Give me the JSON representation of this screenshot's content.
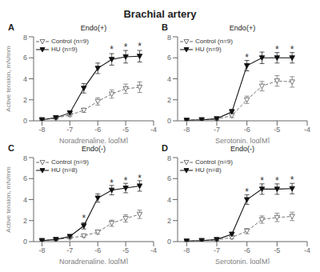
{
  "title": "Brachial artery",
  "chart_data": [
    {
      "type": "line",
      "label": "A",
      "subtitle": "Endo(+)",
      "xlabel": "Noradrenaline, log[M]",
      "ylabel": "Active tension, mN/mm",
      "x": [
        -8,
        -7.5,
        -7,
        -6.5,
        -6,
        -5.5,
        -5,
        -4.5
      ],
      "series": [
        {
          "name": "Control (n=9)",
          "color": "#666666",
          "marker": "triangle-down-open",
          "line_style": "dashed",
          "values": [
            0.1,
            0.25,
            0.55,
            1.0,
            1.85,
            2.55,
            3.05,
            3.2
          ],
          "errors": [
            0.05,
            0.1,
            0.15,
            0.2,
            0.35,
            0.4,
            0.45,
            0.5
          ]
        },
        {
          "name": "HU (n=9)",
          "color": "#111111",
          "marker": "triangle-down",
          "line_style": "solid",
          "values": [
            0.1,
            0.3,
            0.75,
            3.1,
            5.0,
            5.85,
            6.1,
            6.15
          ],
          "errors": [
            0.05,
            0.1,
            0.2,
            0.45,
            0.5,
            0.55,
            0.6,
            0.55
          ]
        }
      ],
      "annotations": [
        {
          "text": "*",
          "x": -5.5,
          "y": 6.8
        },
        {
          "text": "*",
          "x": -5,
          "y": 7.0
        },
        {
          "text": "*",
          "x": -4.5,
          "y": 7.1
        }
      ],
      "xlim": [
        -8.3,
        -4.0
      ],
      "xticks": [
        -8,
        -7,
        -6,
        -5,
        -4
      ],
      "ylim": [
        0,
        8
      ],
      "yticks": [
        0,
        2,
        4,
        6,
        8
      ],
      "legend": "upper left",
      "grid": false
    },
    {
      "type": "line",
      "label": "B",
      "subtitle": "Endo(+)",
      "xlabel": "Serotonin, log[M]",
      "x": [
        -8,
        -7.5,
        -7,
        -6.5,
        -6,
        -5.5,
        -5,
        -4.5
      ],
      "series": [
        {
          "name": "Control (n=9)",
          "color": "#666666",
          "marker": "triangle-down-open",
          "line_style": "dashed",
          "values": [
            0.05,
            0.1,
            0.15,
            0.5,
            2.0,
            3.3,
            3.8,
            3.7
          ],
          "errors": [
            0.03,
            0.05,
            0.1,
            0.2,
            0.35,
            0.45,
            0.5,
            0.5
          ]
        },
        {
          "name": "HU (n=9)",
          "color": "#111111",
          "marker": "triangle-down",
          "line_style": "solid",
          "values": [
            0.05,
            0.1,
            0.2,
            0.85,
            5.25,
            6.0,
            6.0,
            6.0
          ],
          "errors": [
            0.03,
            0.05,
            0.1,
            0.25,
            0.5,
            0.55,
            0.5,
            0.5
          ]
        }
      ],
      "annotations": [
        {
          "text": "*",
          "x": -6,
          "y": 6.0
        },
        {
          "text": "*",
          "x": -5,
          "y": 6.8
        },
        {
          "text": "*",
          "x": -4.5,
          "y": 6.8
        }
      ],
      "xlim": [
        -8.3,
        -4.0
      ],
      "xticks": [
        -8,
        -7,
        -6,
        -5,
        -4
      ],
      "ylim": [
        0,
        8
      ],
      "yticks": [
        0,
        2,
        4,
        6,
        8
      ],
      "legend": "upper left",
      "grid": false
    },
    {
      "type": "line",
      "label": "C",
      "subtitle": "Endo(-)",
      "xlabel": "Noradrenaline, log[M]",
      "ylabel": "Active tension, mN/mm",
      "x": [
        -8,
        -7.5,
        -7,
        -6.5,
        -6,
        -5.5,
        -5,
        -4.5
      ],
      "series": [
        {
          "name": "Control (n=9)",
          "color": "#666666",
          "marker": "triangle-down-open",
          "line_style": "dashed",
          "values": [
            0.1,
            0.2,
            0.35,
            0.55,
            0.9,
            1.75,
            2.2,
            2.6
          ],
          "errors": [
            0.05,
            0.08,
            0.1,
            0.15,
            0.2,
            0.3,
            0.35,
            0.4
          ]
        },
        {
          "name": "HU (n=8)",
          "color": "#111111",
          "marker": "triangle-down",
          "line_style": "solid",
          "values": [
            0.1,
            0.2,
            0.5,
            1.5,
            4.15,
            4.9,
            5.1,
            5.3
          ],
          "errors": [
            0.05,
            0.08,
            0.15,
            0.3,
            0.4,
            0.45,
            0.45,
            0.5
          ]
        }
      ],
      "annotations": [
        {
          "text": "*",
          "x": -6.5,
          "y": 2.2
        },
        {
          "text": "*",
          "x": -5.5,
          "y": 5.6
        },
        {
          "text": "*",
          "x": -5,
          "y": 5.8
        },
        {
          "text": "*",
          "x": -4.5,
          "y": 6.0
        }
      ],
      "xlim": [
        -8.3,
        -4.0
      ],
      "xticks": [
        -8,
        -7,
        -6,
        -5,
        -4
      ],
      "ylim": [
        0,
        8
      ],
      "yticks": [
        0,
        2,
        4,
        6,
        8
      ],
      "legend": "upper left",
      "grid": false
    },
    {
      "type": "line",
      "label": "D",
      "subtitle": "Endo(-)",
      "xlabel": "Serotonin, log[M]",
      "x": [
        -8,
        -7.5,
        -7,
        -6.5,
        -6,
        -5.5,
        -5,
        -4.5
      ],
      "series": [
        {
          "name": "Control (n=9)",
          "color": "#666666",
          "marker": "triangle-down-open",
          "line_style": "dashed",
          "values": [
            0.05,
            0.1,
            0.15,
            0.4,
            1.0,
            2.1,
            2.3,
            2.4
          ],
          "errors": [
            0.03,
            0.05,
            0.08,
            0.15,
            0.25,
            0.35,
            0.4,
            0.4
          ]
        },
        {
          "name": "HU (n=8)",
          "color": "#111111",
          "marker": "triangle-down",
          "line_style": "solid",
          "values": [
            0.05,
            0.1,
            0.2,
            0.7,
            4.0,
            5.0,
            5.0,
            5.05
          ],
          "errors": [
            0.03,
            0.05,
            0.1,
            0.2,
            0.45,
            0.5,
            0.5,
            0.5
          ]
        }
      ],
      "annotations": [
        {
          "text": "*",
          "x": -6,
          "y": 4.7
        },
        {
          "text": "*",
          "x": -5.5,
          "y": 5.8
        },
        {
          "text": "*",
          "x": -5,
          "y": 5.8
        },
        {
          "text": "*",
          "x": -4.5,
          "y": 5.9
        }
      ],
      "xlim": [
        -8.3,
        -4.0
      ],
      "xticks": [
        -8,
        -7,
        -6,
        -5,
        -4
      ],
      "ylim": [
        0,
        8
      ],
      "yticks": [
        0,
        2,
        4,
        6,
        8
      ],
      "legend": "upper left",
      "grid": false
    }
  ]
}
